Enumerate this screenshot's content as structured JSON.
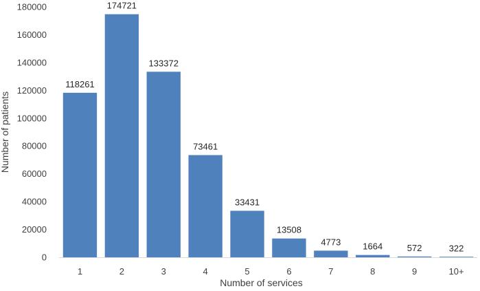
{
  "chart_data": {
    "type": "bar",
    "title": "",
    "xlabel": "Number of services",
    "ylabel": "Number of patients",
    "categories": [
      "1",
      "2",
      "3",
      "4",
      "5",
      "6",
      "7",
      "8",
      "9",
      "10+"
    ],
    "values": [
      118261,
      174721,
      133372,
      73461,
      33431,
      13508,
      4773,
      1664,
      572,
      322
    ],
    "data_labels": [
      "118261",
      "174721",
      "133372",
      "73461",
      "33431",
      "13508",
      "4773",
      "1664",
      "572",
      "322"
    ],
    "ylim": [
      0,
      180000
    ],
    "yticks": [
      0,
      20000,
      40000,
      60000,
      80000,
      100000,
      120000,
      140000,
      160000,
      180000
    ],
    "ytick_labels": [
      "0",
      "20000",
      "40000",
      "60000",
      "80000",
      "100000",
      "120000",
      "140000",
      "160000",
      "180000"
    ],
    "grid": false,
    "legend": "none",
    "bar_color": "#4f81bd",
    "axis_color": "#d9d9d9"
  }
}
